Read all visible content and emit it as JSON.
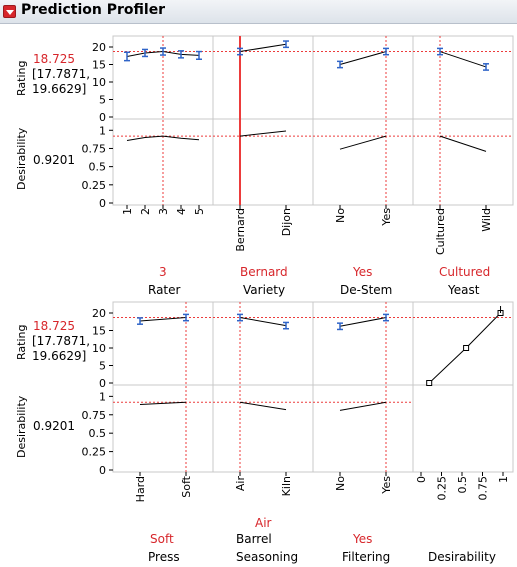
{
  "title": "Prediction Profiler",
  "response": {
    "name": "Rating",
    "value": "18.725",
    "ci_lower": "[17.7871,",
    "ci_upper": "19.6629]",
    "y_ticks": [
      "20",
      "15",
      "10",
      "5",
      "0"
    ]
  },
  "desirability": {
    "name": "Desirability",
    "value": "0.9201",
    "y_ticks": [
      "1",
      "0.75",
      "0.5",
      "0.25",
      "0"
    ]
  },
  "factors": [
    {
      "name": "Rater",
      "current": "3",
      "levels": [
        "1",
        "2",
        "3",
        "4",
        "5"
      ]
    },
    {
      "name": "Variety",
      "current": "Bernard",
      "levels": [
        "Bernard",
        "Dijon"
      ]
    },
    {
      "name": "De-Stem",
      "current": "Yes",
      "levels": [
        "No",
        "Yes"
      ]
    },
    {
      "name": "Yeast",
      "current": "Cultured",
      "levels": [
        "Cultured",
        "Wild"
      ]
    },
    {
      "name": "Press",
      "current": "Soft",
      "levels": [
        "Hard",
        "Soft"
      ]
    },
    {
      "name": "Barrel Seasoning",
      "name_line1": "Barrel",
      "name_line2": "Seasoning",
      "current": "Air",
      "levels": [
        "Air",
        "Kiln"
      ]
    },
    {
      "name": "Filtering",
      "current": "Yes",
      "levels": [
        "No",
        "Yes"
      ]
    }
  ],
  "desirability_function": {
    "name": "Desirability",
    "x_ticks": [
      "0",
      "0.25",
      "0.5",
      "0.75",
      "1"
    ],
    "points": [
      [
        0.1,
        0
      ],
      [
        0.55,
        10
      ],
      [
        0.97,
        20
      ]
    ]
  },
  "colors": {
    "reference": "#ec3b3b",
    "curve": "#000000",
    "ci": "#2f64c8"
  },
  "chart_data": {
    "type": "line",
    "title": "Prediction Profiler",
    "response": "Rating",
    "current_prediction": 18.725,
    "confidence_interval": [
      17.7871,
      19.6629
    ],
    "current_desirability": 0.9201,
    "ylim_rating": [
      0,
      22
    ],
    "ylim_desirability": [
      0,
      1.1
    ],
    "series": [
      {
        "factor": "Rater",
        "x": [
          "1",
          "2",
          "3",
          "4",
          "5"
        ],
        "rating": [
          17.3,
          18.3,
          18.7,
          17.9,
          17.6
        ],
        "ci_half": [
          1.2,
          1.0,
          1.0,
          1.0,
          1.1
        ],
        "desirability": [
          0.86,
          0.9,
          0.92,
          0.89,
          0.87
        ]
      },
      {
        "factor": "Variety",
        "x": [
          "Bernard",
          "Dijon"
        ],
        "rating": [
          18.7,
          20.8
        ],
        "ci_half": [
          0.9,
          0.9
        ],
        "desirability": [
          0.92,
          0.99
        ]
      },
      {
        "factor": "De-Stem",
        "x": [
          "No",
          "Yes"
        ],
        "rating": [
          15.0,
          18.7
        ],
        "ci_half": [
          0.9,
          0.9
        ],
        "desirability": [
          0.74,
          0.92
        ]
      },
      {
        "factor": "Yeast",
        "x": [
          "Cultured",
          "Wild"
        ],
        "rating": [
          18.7,
          14.3
        ],
        "ci_half": [
          0.9,
          0.9
        ],
        "desirability": [
          0.92,
          0.71
        ]
      },
      {
        "factor": "Press",
        "x": [
          "Hard",
          "Soft"
        ],
        "rating": [
          17.7,
          18.7
        ],
        "ci_half": [
          0.9,
          0.9
        ],
        "desirability": [
          0.89,
          0.92
        ]
      },
      {
        "factor": "Barrel Seasoning",
        "x": [
          "Air",
          "Kiln"
        ],
        "rating": [
          18.7,
          16.4
        ],
        "ci_half": [
          0.9,
          0.9
        ],
        "desirability": [
          0.92,
          0.82
        ]
      },
      {
        "factor": "Filtering",
        "x": [
          "No",
          "Yes"
        ],
        "rating": [
          16.2,
          18.7
        ],
        "ci_half": [
          0.9,
          0.9
        ],
        "desirability": [
          0.81,
          0.92
        ]
      }
    ]
  }
}
